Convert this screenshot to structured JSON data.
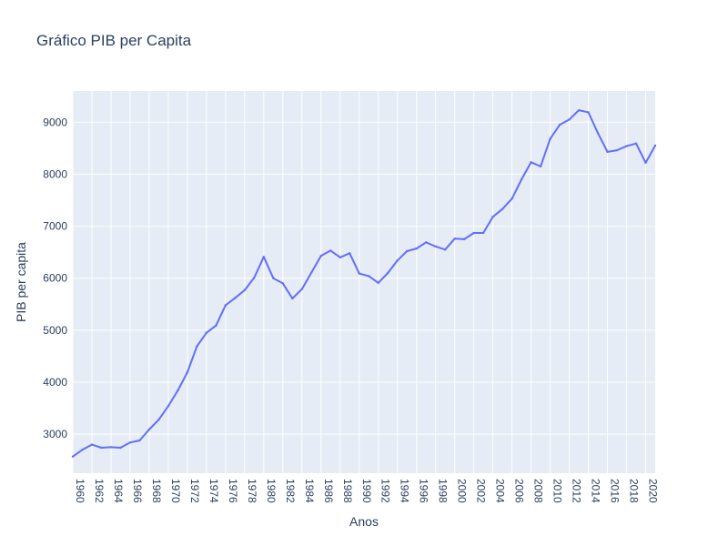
{
  "chart_data": {
    "type": "line",
    "title": "Gráfico PIB per Capita",
    "xlabel": "Anos",
    "ylabel": "PIB per capita",
    "xlim": [
      1960,
      2021
    ],
    "ylim": [
      2250,
      9600
    ],
    "grid": true,
    "legend": "none",
    "colors": {
      "plot_bg": "#e5ecf6",
      "grid": "#ffffff",
      "line": "#636efa",
      "text": "#2a3f5f"
    },
    "xticks": [
      "1960",
      "1962",
      "1964",
      "1966",
      "1968",
      "1970",
      "1972",
      "1974",
      "1976",
      "1978",
      "1980",
      "1982",
      "1984",
      "1986",
      "1988",
      "1990",
      "1992",
      "1994",
      "1996",
      "1998",
      "2000",
      "2002",
      "2004",
      "2006",
      "2008",
      "2010",
      "2012",
      "2014",
      "2016",
      "2018",
      "2020"
    ],
    "yticks": [
      "3000",
      "4000",
      "5000",
      "6000",
      "7000",
      "8000",
      "9000"
    ],
    "series": [
      {
        "x": [
          1960,
          1961,
          1962,
          1963,
          1964,
          1965,
          1966,
          1967,
          1968,
          1969,
          1970,
          1971,
          1972,
          1973,
          1974,
          1975,
          1976,
          1977,
          1978,
          1979,
          1980,
          1981,
          1982,
          1983,
          1984,
          1985,
          1986,
          1987,
          1988,
          1989,
          1990,
          1991,
          1992,
          1993,
          1994,
          1995,
          1996,
          1997,
          1998,
          1999,
          2000,
          2001,
          2002,
          2003,
          2004,
          2005,
          2006,
          2007,
          2008,
          2009,
          2010,
          2011,
          2012,
          2013,
          2014,
          2015,
          2016,
          2017,
          2018,
          2019,
          2020,
          2021
        ],
        "values": [
          2570,
          2700,
          2800,
          2740,
          2750,
          2740,
          2840,
          2880,
          3090,
          3280,
          3540,
          3840,
          4190,
          4690,
          4950,
          5090,
          5480,
          5620,
          5770,
          6010,
          6410,
          6000,
          5900,
          5610,
          5790,
          6110,
          6430,
          6530,
          6400,
          6480,
          6090,
          6040,
          5910,
          6100,
          6340,
          6520,
          6570,
          6690,
          6610,
          6550,
          6760,
          6750,
          6870,
          6870,
          7180,
          7330,
          7530,
          7900,
          8230,
          8150,
          8680,
          8950,
          9050,
          9230,
          9190,
          8790,
          8430,
          8460,
          8540,
          8590,
          8220,
          8550
        ]
      }
    ]
  }
}
